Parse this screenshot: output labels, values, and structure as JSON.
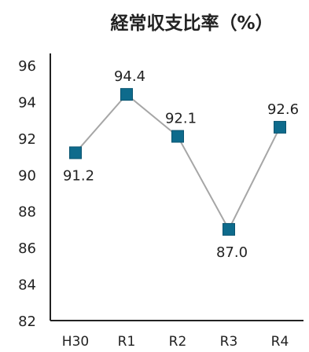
{
  "chart_data": {
    "type": "line",
    "title": "経常収支比率（%）",
    "xlabel": "",
    "ylabel": "",
    "categories": [
      "H30",
      "R1",
      "R2",
      "R3",
      "R4"
    ],
    "series": [
      {
        "values": [
          91.2,
          94.4,
          92.1,
          87.0,
          92.6
        ]
      }
    ],
    "data_labels": [
      "91.2",
      "94.4",
      "92.1",
      "87.0",
      "92.6"
    ],
    "ylim": [
      82,
      96
    ],
    "yticks": [
      "82",
      "84",
      "86",
      "88",
      "90",
      "92",
      "94",
      "96"
    ],
    "grid": false,
    "legend": "none",
    "colors": {
      "marker": "#0e6b8c",
      "marker_edge": "#0a5470",
      "line": "#a6a6a6",
      "axis": "#222222"
    }
  }
}
